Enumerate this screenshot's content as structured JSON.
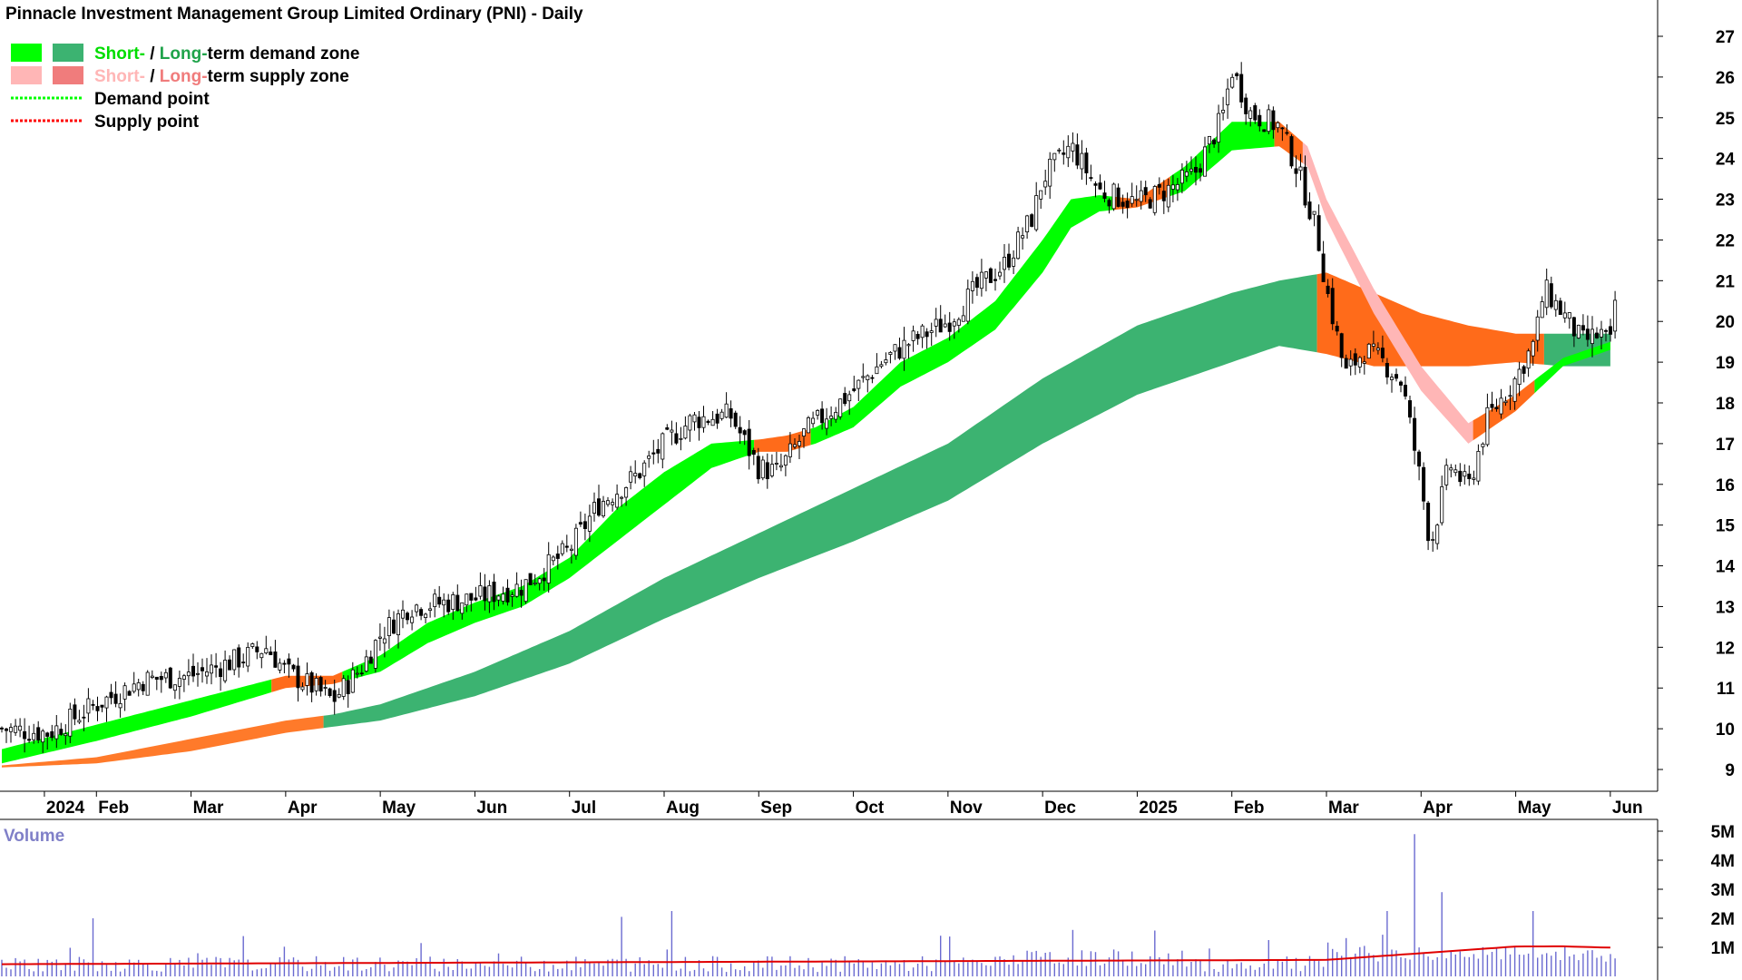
{
  "title": "Pinnacle Investment Management Group Limited Ordinary (PNI) - Daily",
  "legend": {
    "items": [
      {
        "kind": "zone",
        "colors": [
          "#00ff00",
          "#3cb371"
        ],
        "parts": [
          {
            "text": "Short-",
            "color": "#00dd00"
          },
          {
            "text": " / ",
            "color": "#000000"
          },
          {
            "text": "Long-",
            "color": "#1fa34a"
          },
          {
            "text": "term demand zone",
            "color": "#000000"
          }
        ]
      },
      {
        "kind": "zone",
        "colors": [
          "#ffb6b6",
          "#f07c7c"
        ],
        "parts": [
          {
            "text": "Short-",
            "color": "#ffb6b6"
          },
          {
            "text": " / ",
            "color": "#000000"
          },
          {
            "text": "Long-",
            "color": "#f07c7c"
          },
          {
            "text": "term supply zone",
            "color": "#000000"
          }
        ]
      },
      {
        "kind": "line",
        "color": "#00ff00",
        "parts": [
          {
            "text": "Demand point",
            "color": "#000000"
          }
        ]
      },
      {
        "kind": "line",
        "color": "#ff0000",
        "parts": [
          {
            "text": "Supply point",
            "color": "#000000"
          }
        ]
      }
    ]
  },
  "volume_label": "Volume",
  "colors": {
    "short_demand": "#00ff00",
    "long_demand": "#3cb371",
    "supply_transition": "#ff6b1a",
    "short_supply": "#ffb6b6",
    "volume_bar": "#6a6ad0",
    "volume_avg": "#e00000",
    "candle": "#000000"
  },
  "chart_data": {
    "type": "candlestick",
    "price_axis": {
      "ticks": [
        9,
        10,
        11,
        12,
        13,
        14,
        15,
        16,
        17,
        18,
        19,
        20,
        21,
        22,
        23,
        24,
        25,
        26,
        27
      ],
      "range": [
        8.4,
        27.6
      ]
    },
    "time_axis": {
      "labels": [
        {
          "label": "2024",
          "t": 0.45
        },
        {
          "label": "Feb",
          "t": 1.0
        },
        {
          "label": "Mar",
          "t": 2.0
        },
        {
          "label": "Apr",
          "t": 3.0
        },
        {
          "label": "May",
          "t": 4.0
        },
        {
          "label": "Jun",
          "t": 5.0
        },
        {
          "label": "Jul",
          "t": 6.0
        },
        {
          "label": "Aug",
          "t": 7.0
        },
        {
          "label": "Sep",
          "t": 8.0
        },
        {
          "label": "Oct",
          "t": 9.0
        },
        {
          "label": "Nov",
          "t": 10.0
        },
        {
          "label": "Dec",
          "t": 11.0
        },
        {
          "label": "2025",
          "t": 12.0
        },
        {
          "label": "Feb",
          "t": 13.0
        },
        {
          "label": "Mar",
          "t": 14.0
        },
        {
          "label": "Apr",
          "t": 15.0
        },
        {
          "label": "May",
          "t": 16.0
        },
        {
          "label": "Jun",
          "t": 17.0
        }
      ],
      "range": [
        0,
        17.5
      ]
    },
    "price_path": [
      [
        0.0,
        10.0
      ],
      [
        0.5,
        9.9
      ],
      [
        1.0,
        10.6
      ],
      [
        1.5,
        11.2
      ],
      [
        2.0,
        11.3
      ],
      [
        2.5,
        11.7
      ],
      [
        2.8,
        12.0
      ],
      [
        3.0,
        11.4
      ],
      [
        3.3,
        11.0
      ],
      [
        3.5,
        10.7
      ],
      [
        3.8,
        11.5
      ],
      [
        4.0,
        12.3
      ],
      [
        4.3,
        13.0
      ],
      [
        4.7,
        13.1
      ],
      [
        5.0,
        13.2
      ],
      [
        5.5,
        13.5
      ],
      [
        6.0,
        14.4
      ],
      [
        6.3,
        15.5
      ],
      [
        6.7,
        16.2
      ],
      [
        7.0,
        17.0
      ],
      [
        7.3,
        17.6
      ],
      [
        7.7,
        17.7
      ],
      [
        8.0,
        16.4
      ],
      [
        8.2,
        16.3
      ],
      [
        8.5,
        17.3
      ],
      [
        9.0,
        18.3
      ],
      [
        9.3,
        19.0
      ],
      [
        9.6,
        19.5
      ],
      [
        10.0,
        20.0
      ],
      [
        10.3,
        20.8
      ],
      [
        10.6,
        21.4
      ],
      [
        10.9,
        22.6
      ],
      [
        11.0,
        23.5
      ],
      [
        11.3,
        24.3
      ],
      [
        11.6,
        23.2
      ],
      [
        12.0,
        22.9
      ],
      [
        12.3,
        23.2
      ],
      [
        12.6,
        23.6
      ],
      [
        12.9,
        25.0
      ],
      [
        13.0,
        26.2
      ],
      [
        13.2,
        25.1
      ],
      [
        13.5,
        24.8
      ],
      [
        13.7,
        23.7
      ],
      [
        13.9,
        22.2
      ],
      [
        14.0,
        20.8
      ],
      [
        14.2,
        18.7
      ],
      [
        14.4,
        19.3
      ],
      [
        14.6,
        19.0
      ],
      [
        14.8,
        18.5
      ],
      [
        15.0,
        16.0
      ],
      [
        15.1,
        14.5
      ],
      [
        15.3,
        16.5
      ],
      [
        15.5,
        15.9
      ],
      [
        15.7,
        17.6
      ],
      [
        16.0,
        18.6
      ],
      [
        16.2,
        19.5
      ],
      [
        16.3,
        20.8
      ],
      [
        16.5,
        20.2
      ],
      [
        16.7,
        19.5
      ],
      [
        16.9,
        19.7
      ],
      [
        17.0,
        19.4
      ],
      [
        17.05,
        20.5
      ]
    ],
    "short_term_zone": [
      [
        0.0,
        9.15,
        9.5
      ],
      [
        1.0,
        9.7,
        10.1
      ],
      [
        2.0,
        10.3,
        10.7
      ],
      [
        3.0,
        11.0,
        11.3
      ],
      [
        3.5,
        11.1,
        11.3
      ],
      [
        4.0,
        11.4,
        11.8
      ],
      [
        4.5,
        12.1,
        12.6
      ],
      [
        5.0,
        12.6,
        13.1
      ],
      [
        5.5,
        13.0,
        13.5
      ],
      [
        6.0,
        13.7,
        14.2
      ],
      [
        6.5,
        14.6,
        15.4
      ],
      [
        7.0,
        15.5,
        16.3
      ],
      [
        7.5,
        16.4,
        17.0
      ],
      [
        8.0,
        16.8,
        17.1
      ],
      [
        8.3,
        16.8,
        17.2
      ],
      [
        8.6,
        17.0,
        17.4
      ],
      [
        9.0,
        17.4,
        17.9
      ],
      [
        9.5,
        18.4,
        19.0
      ],
      [
        10.0,
        19.0,
        19.6
      ],
      [
        10.5,
        19.8,
        20.5
      ],
      [
        11.0,
        21.2,
        22.0
      ],
      [
        11.3,
        22.3,
        23.0
      ],
      [
        11.6,
        22.7,
        23.1
      ],
      [
        12.0,
        22.8,
        23.0
      ],
      [
        12.5,
        23.2,
        23.8
      ],
      [
        13.0,
        24.2,
        24.9
      ],
      [
        13.5,
        24.3,
        24.9
      ],
      [
        13.8,
        23.8,
        24.3
      ],
      [
        14.0,
        22.5,
        23.0
      ],
      [
        14.5,
        20.2,
        20.8
      ],
      [
        15.0,
        18.3,
        18.9
      ],
      [
        15.5,
        17.0,
        17.5
      ],
      [
        16.0,
        17.8,
        18.2
      ],
      [
        16.5,
        18.9,
        19.1
      ],
      [
        17.0,
        19.3,
        19.5
      ]
    ],
    "long_term_zone": [
      [
        0.0,
        9.05,
        9.1
      ],
      [
        1.0,
        9.15,
        9.3
      ],
      [
        2.0,
        9.45,
        9.75
      ],
      [
        3.0,
        9.9,
        10.2
      ],
      [
        3.5,
        10.05,
        10.35
      ],
      [
        4.0,
        10.2,
        10.6
      ],
      [
        5.0,
        10.8,
        11.4
      ],
      [
        6.0,
        11.6,
        12.4
      ],
      [
        7.0,
        12.7,
        13.7
      ],
      [
        8.0,
        13.7,
        14.8
      ],
      [
        9.0,
        14.6,
        15.9
      ],
      [
        10.0,
        15.6,
        17.0
      ],
      [
        11.0,
        17.0,
        18.6
      ],
      [
        12.0,
        18.2,
        19.9
      ],
      [
        13.0,
        19.0,
        20.7
      ],
      [
        13.5,
        19.4,
        21.0
      ],
      [
        14.0,
        19.2,
        21.2
      ],
      [
        14.5,
        18.9,
        20.7
      ],
      [
        15.0,
        18.9,
        20.2
      ],
      [
        15.5,
        18.9,
        19.9
      ],
      [
        16.0,
        19.0,
        19.7
      ],
      [
        16.5,
        18.9,
        19.7
      ],
      [
        17.0,
        18.9,
        19.7
      ]
    ],
    "volume_axis": {
      "ticks": [
        {
          "value": 1,
          "label": "1M"
        },
        {
          "value": 2,
          "label": "2M"
        },
        {
          "value": 3,
          "label": "3M"
        },
        {
          "value": 4,
          "label": "4M"
        },
        {
          "value": 5,
          "label": "5M"
        }
      ],
      "range": [
        0,
        5.2
      ]
    },
    "volume_spikes": [
      {
        "t": 0.95,
        "v": 2.0
      },
      {
        "t": 6.55,
        "v": 2.05
      },
      {
        "t": 7.1,
        "v": 2.25
      },
      {
        "t": 14.65,
        "v": 2.25
      },
      {
        "t": 14.95,
        "v": 4.9
      },
      {
        "t": 15.2,
        "v": 2.9
      },
      {
        "t": 16.2,
        "v": 2.25
      },
      {
        "t": 9.9,
        "v": 1.4
      },
      {
        "t": 11.3,
        "v": 1.6
      }
    ]
  }
}
